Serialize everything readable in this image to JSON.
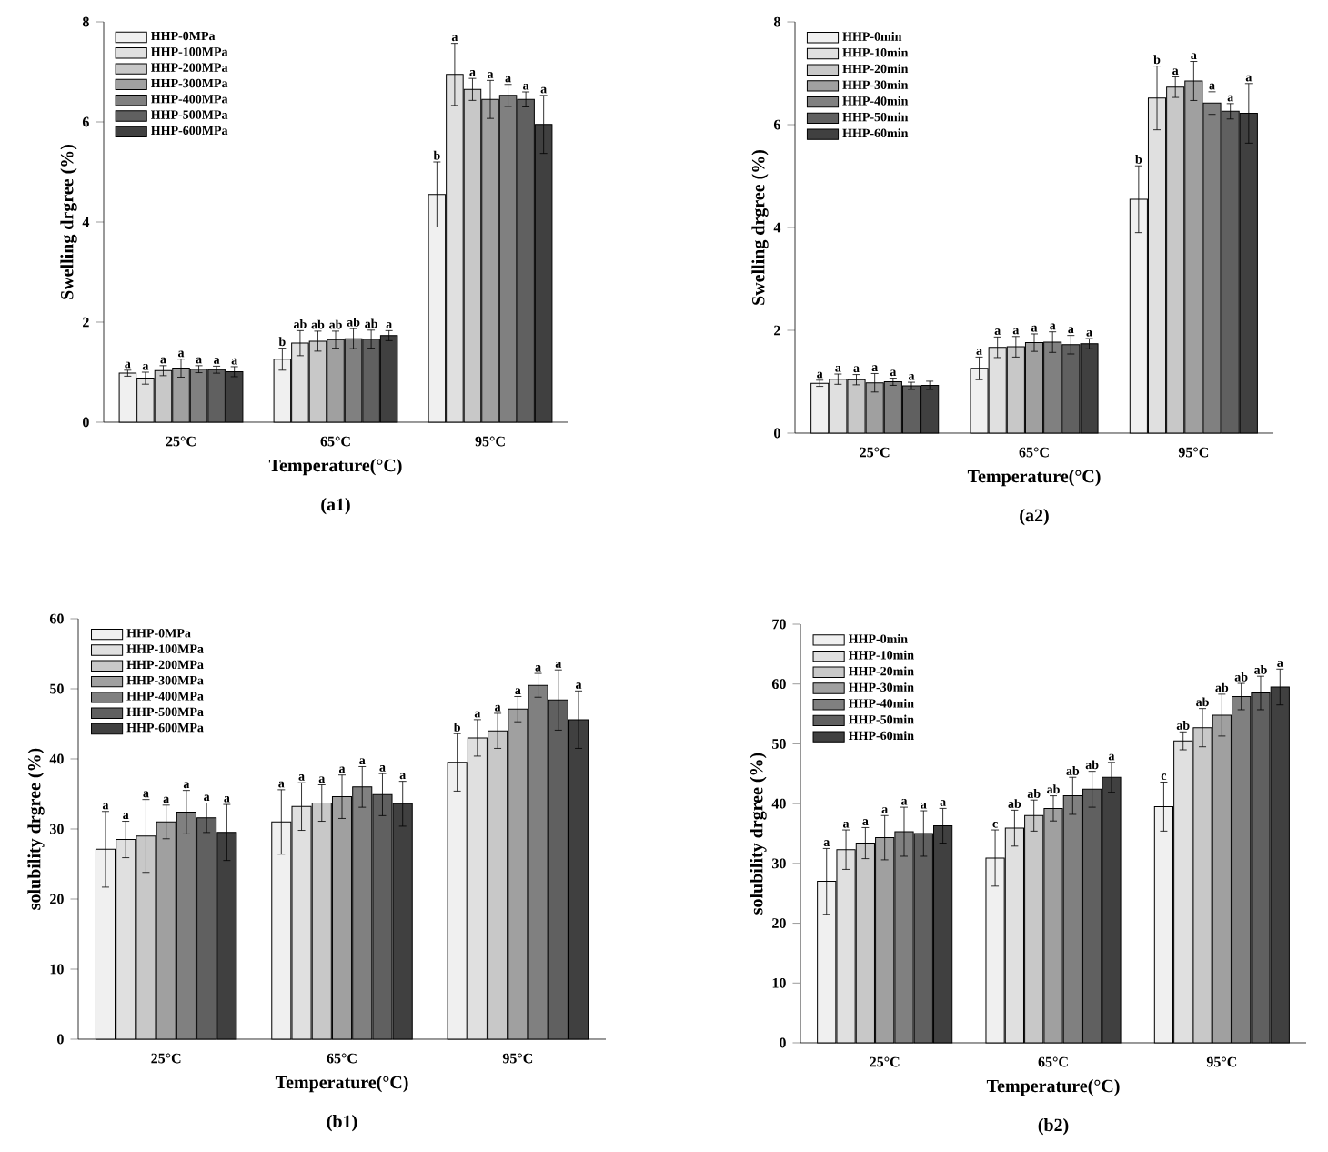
{
  "chart_data": [
    {
      "type": "bar",
      "xlabel": "Temperature(°C)",
      "ylabel": "Swelling drgree (%)",
      "annotations": [
        "(a1)"
      ],
      "categories": [
        "25°C",
        "65°C",
        "95°C"
      ],
      "ylim": [
        0,
        8
      ],
      "yticks": [
        0,
        2,
        4,
        6,
        8
      ],
      "legend": "top left",
      "series": [
        {
          "name": "HHP-0MPa",
          "color": "#f0f0f0",
          "values": [
            0.98,
            1.26,
            4.55
          ],
          "errors": [
            0.06,
            0.22,
            0.65
          ],
          "value_labels": [
            "a",
            "b",
            "b"
          ]
        },
        {
          "name": "HHP-100MPa",
          "color": "#e0e0e0",
          "values": [
            0.88,
            1.58,
            6.95
          ],
          "errors": [
            0.12,
            0.25,
            0.62
          ],
          "value_labels": [
            "a",
            "ab",
            "a"
          ]
        },
        {
          "name": "HHP-200MPa",
          "color": "#c8c8c8",
          "values": [
            1.03,
            1.62,
            6.65
          ],
          "errors": [
            0.1,
            0.2,
            0.22
          ],
          "value_labels": [
            "a",
            "ab",
            "a"
          ]
        },
        {
          "name": "HHP-300MPa",
          "color": "#a0a0a0",
          "values": [
            1.08,
            1.65,
            6.45
          ],
          "errors": [
            0.18,
            0.17,
            0.38
          ],
          "value_labels": [
            "a",
            "ab",
            "a"
          ]
        },
        {
          "name": "HHP-400MPa",
          "color": "#808080",
          "values": [
            1.06,
            1.67,
            6.53
          ],
          "errors": [
            0.07,
            0.2,
            0.22
          ],
          "value_labels": [
            "a",
            "ab",
            "a"
          ]
        },
        {
          "name": "HHP-500MPa",
          "color": "#606060",
          "values": [
            1.05,
            1.66,
            6.45
          ],
          "errors": [
            0.07,
            0.18,
            0.15
          ],
          "value_labels": [
            "a",
            "ab",
            "a"
          ]
        },
        {
          "name": "HHP-600MPa",
          "color": "#404040",
          "values": [
            1.01,
            1.73,
            5.95
          ],
          "errors": [
            0.1,
            0.1,
            0.58
          ],
          "value_labels": [
            "a",
            "a",
            "a"
          ]
        }
      ]
    },
    {
      "type": "bar",
      "xlabel": "Temperature(°C)",
      "ylabel": "Swelling drgree (%)",
      "annotations": [
        "(a2)"
      ],
      "categories": [
        "25°C",
        "65°C",
        "95°C"
      ],
      "ylim": [
        0,
        8
      ],
      "yticks": [
        0,
        2,
        4,
        6,
        8
      ],
      "legend": "top left",
      "series": [
        {
          "name": "HHP-0min",
          "color": "#f0f0f0",
          "values": [
            0.97,
            1.26,
            4.55
          ],
          "errors": [
            0.06,
            0.22,
            0.65
          ],
          "value_labels": [
            "a",
            "a",
            "b"
          ]
        },
        {
          "name": "HHP-10min",
          "color": "#e0e0e0",
          "values": [
            1.05,
            1.67,
            6.52
          ],
          "errors": [
            0.1,
            0.2,
            0.62
          ],
          "value_labels": [
            "a",
            "a",
            "b"
          ]
        },
        {
          "name": "HHP-20min",
          "color": "#c8c8c8",
          "values": [
            1.04,
            1.68,
            6.73
          ],
          "errors": [
            0.1,
            0.2,
            0.2
          ],
          "value_labels": [
            "a",
            "a",
            "a"
          ]
        },
        {
          "name": "HHP-30min",
          "color": "#a0a0a0",
          "values": [
            0.98,
            1.76,
            6.85
          ],
          "errors": [
            0.18,
            0.17,
            0.38
          ],
          "value_labels": [
            "a",
            "a",
            "a"
          ]
        },
        {
          "name": "HHP-40min",
          "color": "#808080",
          "values": [
            1.0,
            1.77,
            6.42
          ],
          "errors": [
            0.07,
            0.2,
            0.22
          ],
          "value_labels": [
            "a",
            "a",
            "a"
          ]
        },
        {
          "name": "HHP-50min",
          "color": "#606060",
          "values": [
            0.92,
            1.72,
            6.26
          ],
          "errors": [
            0.07,
            0.18,
            0.15
          ],
          "value_labels": [
            "a",
            "a",
            "a"
          ]
        },
        {
          "name": "HHP-60min",
          "color": "#404040",
          "values": [
            0.93,
            1.74,
            6.22
          ],
          "errors": [
            0.08,
            0.1,
            0.58
          ],
          "value_labels": [
            null,
            "a",
            "a"
          ]
        }
      ]
    },
    {
      "type": "bar",
      "xlabel": "Temperature(°C)",
      "ylabel": "solubility drgree (%)",
      "annotations": [
        "(b1)"
      ],
      "categories": [
        "25°C",
        "65°C",
        "95°C"
      ],
      "ylim": [
        0,
        60
      ],
      "yticks": [
        0,
        10,
        20,
        30,
        40,
        50,
        60
      ],
      "legend": "top left",
      "series": [
        {
          "name": "HHP-0MPa",
          "color": "#f0f0f0",
          "values": [
            27.1,
            31.0,
            39.5
          ],
          "errors": [
            5.4,
            4.6,
            4.1
          ],
          "value_labels": [
            "a",
            "a",
            "b"
          ]
        },
        {
          "name": "HHP-100MPa",
          "color": "#e0e0e0",
          "values": [
            28.5,
            33.2,
            43.0
          ],
          "errors": [
            2.6,
            3.4,
            2.6
          ],
          "value_labels": [
            "a",
            "a",
            "a"
          ]
        },
        {
          "name": "HHP-200MPa",
          "color": "#c8c8c8",
          "values": [
            29.0,
            33.7,
            44.0
          ],
          "errors": [
            5.2,
            2.6,
            2.5
          ],
          "value_labels": [
            "a",
            "a",
            "a"
          ]
        },
        {
          "name": "HHP-300MPa",
          "color": "#a0a0a0",
          "values": [
            31.0,
            34.6,
            47.1
          ],
          "errors": [
            2.4,
            3.1,
            1.8
          ],
          "value_labels": [
            "a",
            "a",
            "a"
          ]
        },
        {
          "name": "HHP-400MPa",
          "color": "#808080",
          "values": [
            32.4,
            36.0,
            50.5
          ],
          "errors": [
            3.1,
            2.9,
            1.7
          ],
          "value_labels": [
            "a",
            "a",
            "a"
          ]
        },
        {
          "name": "HHP-500MPa",
          "color": "#606060",
          "values": [
            31.6,
            34.9,
            48.4
          ],
          "errors": [
            2.1,
            3.0,
            4.3
          ],
          "value_labels": [
            "a",
            "a",
            "a"
          ]
        },
        {
          "name": "HHP-600MPa",
          "color": "#404040",
          "values": [
            29.5,
            33.6,
            45.6
          ],
          "errors": [
            4.0,
            3.2,
            4.1
          ],
          "value_labels": [
            "a",
            "a",
            "a"
          ]
        }
      ]
    },
    {
      "type": "bar",
      "xlabel": "Temperature(°C)",
      "ylabel": "solubility drgree (%)",
      "annotations": [
        "(b2)"
      ],
      "categories": [
        "25°C",
        "65°C",
        "95°C"
      ],
      "ylim": [
        0,
        70
      ],
      "yticks": [
        0,
        10,
        20,
        30,
        40,
        50,
        60,
        70
      ],
      "legend": "top left",
      "series": [
        {
          "name": "HHP-0min",
          "color": "#f0f0f0",
          "values": [
            27.0,
            30.9,
            39.5
          ],
          "errors": [
            5.5,
            4.7,
            4.1
          ],
          "value_labels": [
            "a",
            "c",
            "c"
          ]
        },
        {
          "name": "HHP-10min",
          "color": "#e0e0e0",
          "values": [
            32.3,
            35.9,
            50.5
          ],
          "errors": [
            3.3,
            3.0,
            1.5
          ],
          "value_labels": [
            "a",
            "ab",
            "ab"
          ]
        },
        {
          "name": "HHP-20min",
          "color": "#c8c8c8",
          "values": [
            33.4,
            38.0,
            52.7
          ],
          "errors": [
            2.6,
            2.6,
            3.2
          ],
          "value_labels": [
            "a",
            "ab",
            "ab"
          ]
        },
        {
          "name": "HHP-30min",
          "color": "#a0a0a0",
          "values": [
            34.3,
            39.2,
            54.8
          ],
          "errors": [
            3.7,
            2.1,
            3.5
          ],
          "value_labels": [
            "a",
            "ab",
            "ab"
          ]
        },
        {
          "name": "HHP-40min",
          "color": "#808080",
          "values": [
            35.3,
            41.3,
            57.9
          ],
          "errors": [
            4.1,
            3.1,
            2.2
          ],
          "value_labels": [
            "a",
            "ab",
            "ab"
          ]
        },
        {
          "name": "HHP-50min",
          "color": "#606060",
          "values": [
            35.0,
            42.4,
            58.5
          ],
          "errors": [
            3.8,
            3.0,
            2.8
          ],
          "value_labels": [
            "a",
            "ab",
            "ab"
          ]
        },
        {
          "name": "HHP-60min",
          "color": "#404040",
          "values": [
            36.3,
            44.4,
            59.5
          ],
          "errors": [
            2.9,
            2.5,
            3.0
          ],
          "value_labels": [
            "a",
            "a",
            "a"
          ]
        }
      ]
    }
  ]
}
